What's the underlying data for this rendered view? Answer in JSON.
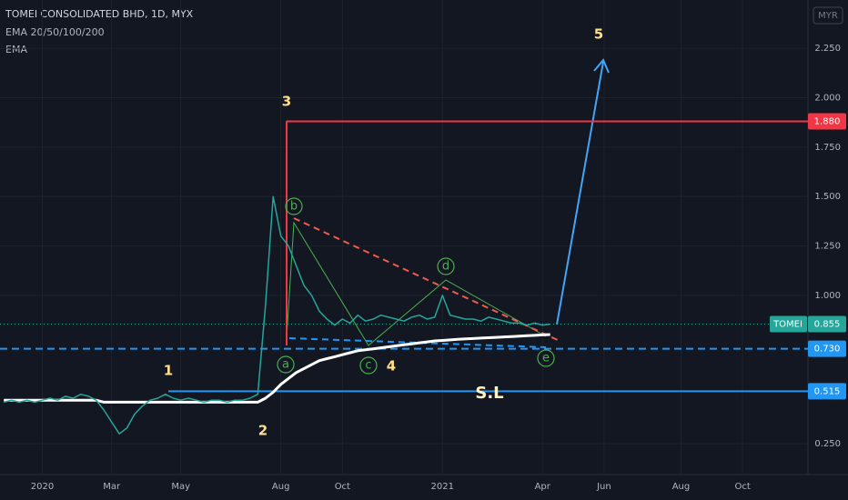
{
  "chart_data": {
    "type": "line",
    "title": "TOMEI CONSOLIDATED BHD, 1D, MYX",
    "indicators": [
      "EMA 20/50/100/200"
    ],
    "currency": "MYR",
    "categories": [
      null,
      null,
      null,
      null,
      null,
      "2020",
      null,
      null,
      null,
      null,
      null,
      null,
      null,
      null,
      "Mar",
      null,
      null,
      null,
      null,
      null,
      null,
      null,
      null,
      "May",
      null,
      null,
      null,
      null,
      null,
      null,
      null,
      null,
      null,
      null,
      null,
      null,
      "Aug",
      null,
      null,
      null,
      null,
      null,
      null,
      null,
      "Oct",
      null,
      null,
      null,
      null,
      null,
      null,
      null,
      null,
      null,
      null,
      null,
      null,
      "2021",
      null,
      null,
      null,
      null,
      null,
      null,
      null,
      null,
      null,
      null,
      null,
      null,
      "Apr",
      null,
      null,
      null,
      null,
      null,
      null,
      null,
      "Jun",
      null,
      null,
      null,
      null,
      null,
      null,
      null,
      null,
      null,
      "Aug",
      null,
      null,
      null,
      null,
      null,
      null,
      null,
      "Oct",
      null,
      null,
      null,
      null,
      null,
      null,
      null,
      null
    ],
    "series": [
      {
        "name": "TOMEI",
        "color": "#26a69a",
        "values": [
          0.46,
          0.47,
          0.46,
          0.47,
          0.46,
          0.47,
          0.48,
          0.47,
          0.49,
          0.48,
          0.5,
          0.49,
          0.47,
          0.42,
          0.36,
          0.3,
          0.33,
          0.4,
          0.44,
          0.47,
          0.48,
          0.5,
          0.48,
          0.47,
          0.48,
          0.47,
          0.46,
          0.47,
          0.47,
          0.46,
          0.47,
          0.47,
          0.48,
          0.5,
          0.95,
          1.5,
          1.3,
          1.25,
          1.15,
          1.05,
          1.0,
          0.92,
          0.88,
          0.85,
          0.88,
          0.86,
          0.9,
          0.87,
          0.88,
          0.9,
          0.89,
          0.88,
          0.87,
          0.89,
          0.9,
          0.88,
          0.89,
          1.0,
          0.9,
          0.89,
          0.88,
          0.88,
          0.87,
          0.89,
          0.88,
          0.87,
          0.86,
          0.86,
          0.85,
          0.86,
          0.85,
          0.855,
          null,
          null,
          null,
          null,
          null,
          null,
          null,
          null,
          null,
          null,
          null,
          null,
          null,
          null,
          null,
          null,
          null,
          null,
          null,
          null,
          null,
          null,
          null,
          null,
          null,
          null,
          null,
          null,
          null,
          null,
          null,
          null,
          null
        ]
      },
      {
        "name": "EMA",
        "color": "#ffffff",
        "values": [
          0.47,
          0.47,
          0.47,
          0.47,
          0.47,
          0.47,
          0.47,
          0.47,
          0.47,
          0.47,
          0.47,
          0.47,
          0.47,
          0.46,
          0.46,
          0.46,
          0.46,
          0.46,
          0.46,
          0.46,
          0.46,
          0.46,
          0.46,
          0.46,
          0.46,
          0.46,
          0.46,
          0.46,
          0.46,
          0.46,
          0.46,
          0.46,
          0.46,
          0.46,
          0.48,
          0.51,
          0.55,
          0.58,
          0.61,
          0.63,
          0.65,
          0.67,
          0.68,
          0.69,
          0.7,
          0.71,
          0.72,
          0.725,
          0.73,
          0.735,
          0.74,
          0.745,
          0.75,
          0.755,
          0.76,
          0.765,
          0.77,
          0.772,
          0.775,
          0.778,
          0.78,
          0.782,
          0.784,
          0.786,
          0.788,
          0.79,
          0.792,
          0.794,
          0.796,
          0.798,
          0.8,
          0.802,
          null,
          null,
          null,
          null,
          null,
          null,
          null,
          null,
          null,
          null,
          null,
          null,
          null,
          null,
          null,
          null,
          null,
          null,
          null,
          null,
          null,
          null,
          null,
          null,
          null,
          null,
          null,
          null,
          null,
          null,
          null,
          null,
          null
        ]
      }
    ],
    "ylim": [
      0.094,
      2.494
    ],
    "yticks": [
      {
        "value": 0.25,
        "label": "0.250"
      },
      {
        "value": 1,
        "label": "1.000"
      },
      {
        "value": 1.25,
        "label": "1.250"
      },
      {
        "value": 1.5,
        "label": "1.500"
      },
      {
        "value": 1.75,
        "label": "1.750"
      },
      {
        "value": 2,
        "label": "2.000"
      },
      {
        "value": 2.25,
        "label": "2.250"
      }
    ],
    "grid": true,
    "price_lines": [
      {
        "value": 1.88,
        "label": "1.880",
        "color": "#f23645",
        "style": "solid"
      },
      {
        "value": 0.855,
        "label": "0.855",
        "color": "#26a69a",
        "style": "dotted"
      },
      {
        "value": 0.73,
        "label": "0.730",
        "color": "#2196f3",
        "style": "dashed"
      },
      {
        "value": 0.515,
        "label": "0.515",
        "color": "#2196f3",
        "style": "solid"
      }
    ],
    "annotations": [
      "1",
      "2",
      "3",
      "4",
      "5",
      "S.L"
    ],
    "waves": [
      "a",
      "b",
      "c",
      "d",
      "e"
    ]
  }
}
